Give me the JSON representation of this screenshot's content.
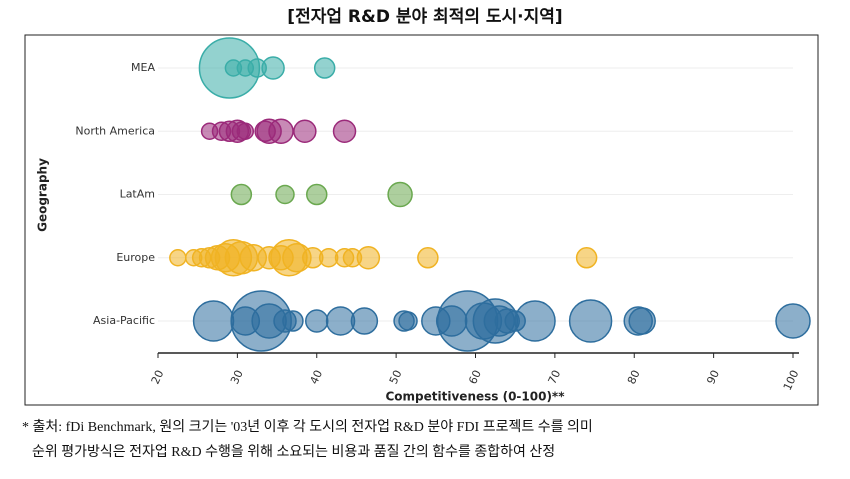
{
  "chart_data": {
    "type": "bubble",
    "title": "[전자업 R&D 분야 최적의 도시·지역]",
    "x_label": "Competitiveness (0-100)**",
    "y_label": "Geography",
    "categories": [
      "MEA",
      "North America",
      "LatAm",
      "Europe",
      "Asia-Pacific"
    ],
    "series": [
      {
        "color": "#3aada8",
        "x": [
          29,
          29.5,
          31,
          32.5,
          34.5,
          41
        ],
        "sizes": [
          30,
          8,
          8,
          9,
          11,
          10
        ]
      },
      {
        "color": "#9b2a7a",
        "x": [
          26.5,
          28,
          29,
          30,
          30.5,
          31,
          33.5,
          34,
          35.5,
          38.5,
          43.5
        ],
        "sizes": [
          8,
          9,
          10,
          11,
          9,
          8,
          10,
          12,
          12,
          11,
          11
        ]
      },
      {
        "color": "#6aa84f",
        "x": [
          30.5,
          36,
          40,
          50.5
        ],
        "sizes": [
          10,
          9,
          10,
          12
        ]
      },
      {
        "color": "#f0b323",
        "x": [
          22.5,
          24.5,
          25.5,
          26.5,
          27.5,
          28.5,
          29.5,
          30.5,
          32,
          34,
          35.5,
          36.5,
          37.5,
          39.5,
          41.5,
          43.5,
          44.5,
          46.5,
          54,
          74
        ],
        "sizes": [
          8,
          8,
          9,
          10,
          12,
          14,
          18,
          16,
          13,
          11,
          12,
          18,
          14,
          10,
          9,
          9,
          9,
          11,
          10,
          10
        ]
      },
      {
        "color": "#2e6e9e",
        "x": [
          27,
          31,
          33,
          34,
          36,
          37,
          40,
          43,
          46,
          51,
          51.5,
          55,
          57,
          59,
          61,
          62.5,
          63,
          64,
          65,
          67.5,
          74.5,
          80.5,
          81,
          100
        ],
        "sizes": [
          20,
          14,
          30,
          17,
          11,
          10,
          11,
          14,
          13,
          10,
          9,
          14,
          15,
          30,
          18,
          22,
          15,
          12,
          10,
          20,
          21,
          14,
          13,
          17
        ]
      }
    ],
    "xlim": [
      20,
      100
    ],
    "xticks": [
      20,
      30,
      40,
      50,
      60,
      70,
      80,
      90,
      100
    ],
    "grid": true,
    "notes": [
      "* 출처: fDi Benchmark, 원의 크기는 '03년 이후 각 도시의 전자업 R&D 분야 FDI 프로젝트 수를 의미",
      "순위 평가방식은 전자업 R&D 수행을 위해 소요되는 비용과 품질 간의 함수를 종합하여 산정"
    ]
  }
}
